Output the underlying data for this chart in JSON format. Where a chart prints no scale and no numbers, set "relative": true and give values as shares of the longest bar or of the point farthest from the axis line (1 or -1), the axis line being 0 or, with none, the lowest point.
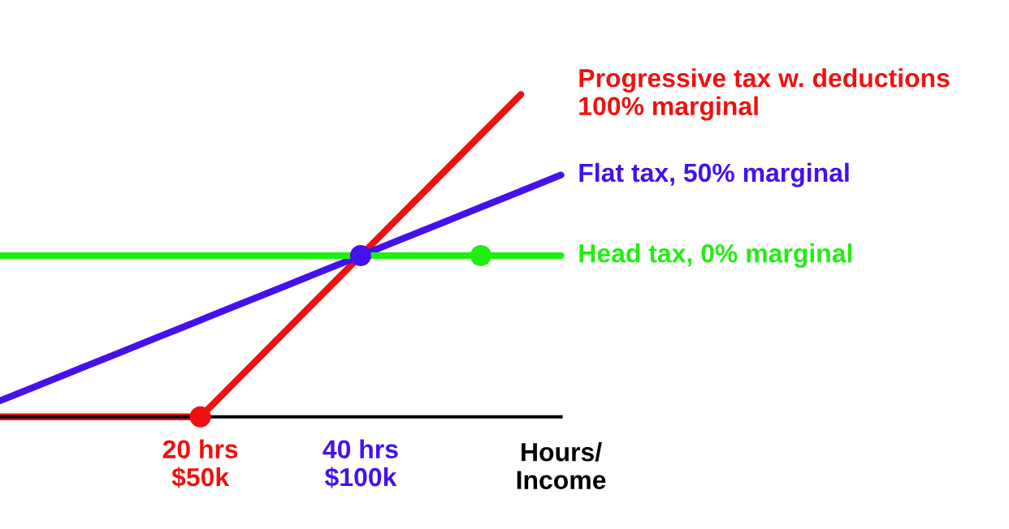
{
  "chart_data": {
    "type": "line",
    "relative": true,
    "xlabel": "Hours/\nIncome",
    "legend": false,
    "categories": [
      null,
      null,
      null,
      null,
      null,
      "20 hrs\n$50k",
      null,
      null,
      null,
      "40 hrs\n$100k",
      null,
      null,
      null,
      null,
      null
    ],
    "series": [
      {
        "name": "Progressive tax w. deductions\n100% marginal",
        "color": "#ee1111",
        "values": [
          0,
          0,
          0,
          0,
          0,
          0,
          0.125,
          0.25,
          0.375,
          0.5,
          0.625,
          0.75,
          0.875,
          1,
          null
        ]
      },
      {
        "name": "Flat tax, 50% marginal",
        "color": "#4411ee",
        "values": [
          0.05,
          0.1,
          0.15,
          0.2,
          0.25,
          0.3,
          0.35,
          0.4,
          0.45,
          0.5,
          0.55,
          0.6,
          0.65,
          0.7,
          0.75
        ]
      },
      {
        "name": "Head tax, 0% marginal",
        "color": "#22ee11",
        "values": [
          0.5,
          0.5,
          0.5,
          0.5,
          0.5,
          0.5,
          0.5,
          0.5,
          0.5,
          0.5,
          0.5,
          0.5,
          0.5,
          0.5,
          0.5
        ]
      },
      {
        "type": "scatter",
        "color": "#22ee11",
        "values": [
          null,
          null,
          null,
          null,
          null,
          null,
          null,
          null,
          null,
          null,
          null,
          null,
          0.5,
          null,
          null
        ]
      },
      {
        "type": "scatter",
        "color": "#ee1111",
        "values": [
          null,
          null,
          null,
          null,
          null,
          0,
          null,
          null,
          null,
          null,
          null,
          null,
          null,
          null,
          null
        ]
      },
      {
        "type": "scatter",
        "color": "#4411ee",
        "values": [
          null,
          null,
          null,
          null,
          null,
          null,
          null,
          null,
          null,
          0.5,
          null,
          null,
          null,
          null,
          null
        ]
      }
    ]
  }
}
